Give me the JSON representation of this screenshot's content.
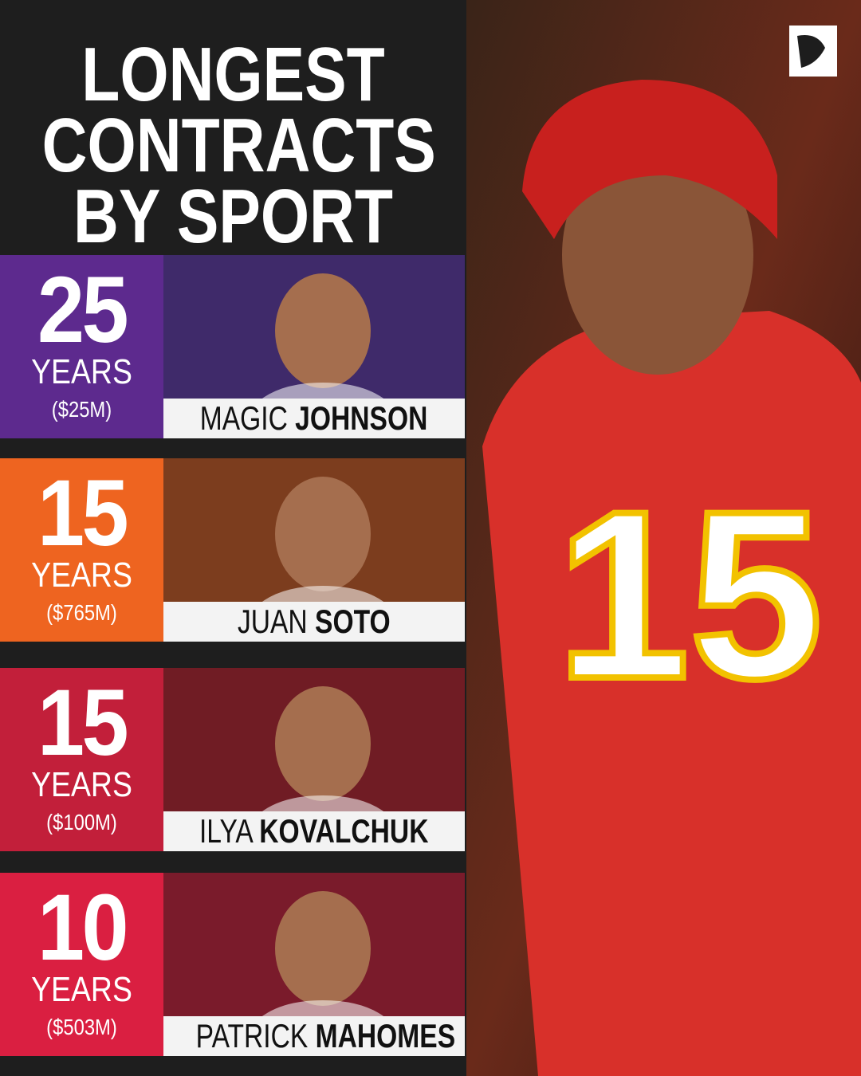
{
  "title": {
    "lines": [
      "LONGEST",
      "CONTRACTS",
      "BY SPORT"
    ]
  },
  "entries": [
    {
      "years": 25,
      "unit": "YEARS",
      "amount": "($25M)",
      "first_name": "MAGIC",
      "last_name": "JOHNSON"
    },
    {
      "years": 15,
      "unit": "YEARS",
      "amount": "($765M)",
      "first_name": "JUAN",
      "last_name": "SOTO"
    },
    {
      "years": 15,
      "unit": "YEARS",
      "amount": "($100M)",
      "first_name": "ILYA",
      "last_name": "KOVALCHUK"
    },
    {
      "years": 10,
      "unit": "YEARS",
      "amount": "($503M)",
      "first_name": "PATRICK",
      "last_name": "MAHOMES"
    }
  ],
  "hero": {
    "jersey_number": "15"
  }
}
